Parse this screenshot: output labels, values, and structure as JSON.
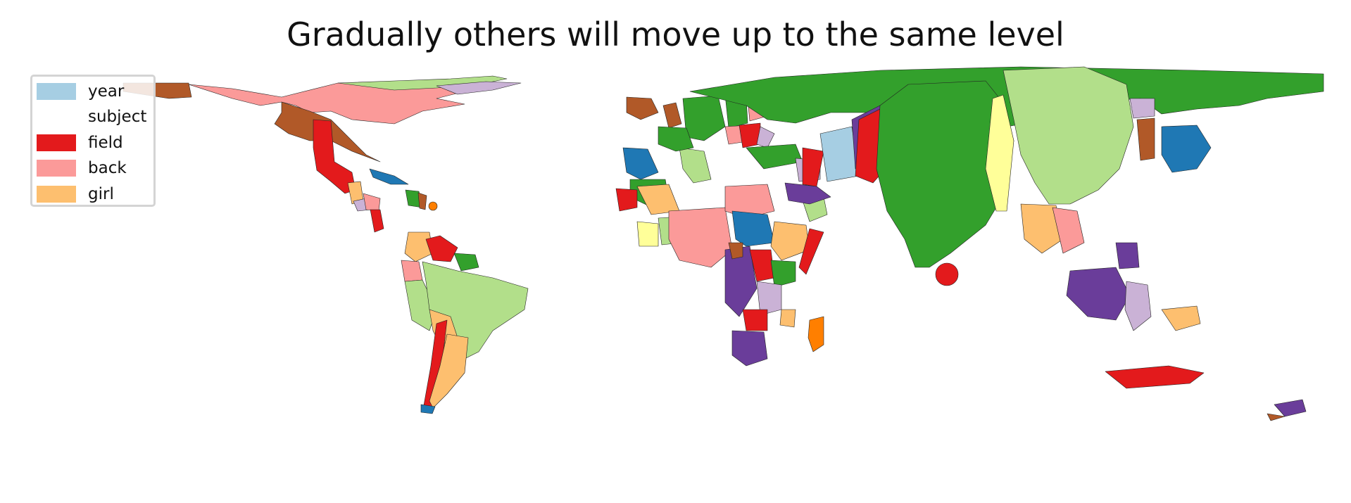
{
  "title": "Gradually others will move up to the same level",
  "legend": {
    "items": [
      {
        "label": "year",
        "color": "#a6cee3"
      },
      {
        "label": "subject",
        "color": "#ffffff"
      },
      {
        "label": "field",
        "color": "#e31a1c"
      },
      {
        "label": "back",
        "color": "#fb9a99"
      },
      {
        "label": "girl",
        "color": "#fdbf6f"
      }
    ]
  },
  "palette": {
    "green": "#33a02c",
    "light_green": "#b2df8a",
    "brown": "#b15928",
    "purple": "#6a3d9a",
    "light_purple": "#cab2d6",
    "orange": "#ff7f00",
    "yellow": "#ffff99",
    "blue": "#1f78b4"
  }
}
